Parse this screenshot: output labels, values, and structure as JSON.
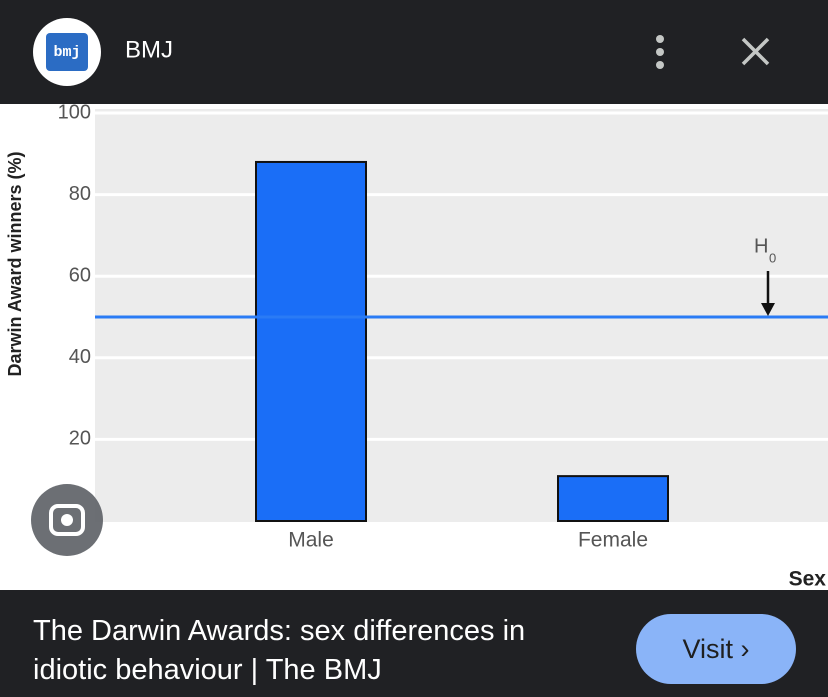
{
  "header": {
    "logo_text": "bmj",
    "title": "BMJ"
  },
  "chart_data": {
    "type": "bar",
    "ylabel": "Darwin Award winners (%)",
    "xlabel": "Sex",
    "categories": [
      "Male",
      "Female"
    ],
    "values": [
      88,
      11
    ],
    "color": "#1a6ef7",
    "ylim": [
      0,
      100
    ],
    "yticks": [
      20,
      40,
      60,
      80,
      100
    ],
    "grid": true,
    "reference_line": {
      "value": 50,
      "label": "H",
      "label_subscript": "0",
      "color": "#2a7bf5"
    }
  },
  "footer": {
    "caption": "The Darwin Awards: sex differences in idiotic behaviour | The BMJ",
    "button": "Visit"
  }
}
